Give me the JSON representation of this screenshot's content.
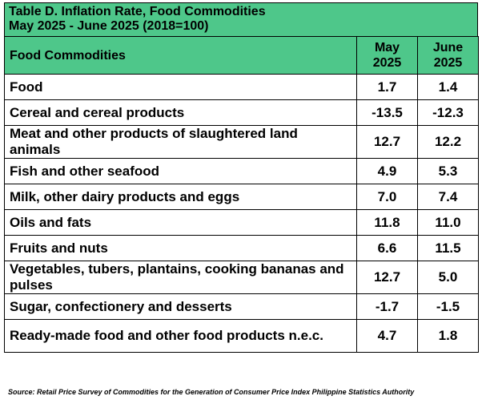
{
  "accent_color": "#4ec78a",
  "title": {
    "line1": "Table D.  Inflation Rate, Food Commodities",
    "line2": "May 2025 - June 2025 (2018=100)"
  },
  "columns": {
    "name": "Food Commodities",
    "may": "May 2025",
    "june": "June 2025"
  },
  "rows": [
    {
      "name": "Food",
      "may": "1.7",
      "june": "1.4"
    },
    {
      "name": "Cereal and cereal products",
      "may": "-13.5",
      "june": "-12.3"
    },
    {
      "name": "Meat and other products of slaughtered land animals",
      "may": "12.7",
      "june": "12.2"
    },
    {
      "name": "Fish and other seafood",
      "may": "4.9",
      "june": "5.3"
    },
    {
      "name": "Milk, other dairy products and eggs",
      "may": "7.0",
      "june": "7.4"
    },
    {
      "name": "Oils and fats",
      "may": "11.8",
      "june": "11.0"
    },
    {
      "name": "Fruits and nuts",
      "may": "6.6",
      "june": "11.5"
    },
    {
      "name": "Vegetables, tubers, plantains, cooking bananas and pulses",
      "may": "12.7",
      "june": "5.0"
    },
    {
      "name": "Sugar, confectionery and desserts",
      "may": "-1.7",
      "june": "-1.5"
    },
    {
      "name": "Ready-made food and other food products n.e.c.",
      "may": "4.7",
      "june": "1.8"
    }
  ],
  "source": "Source: Retail Price Survey of Commodities for the Generation of Consumer Price Index Philippine Statistics Authority"
}
